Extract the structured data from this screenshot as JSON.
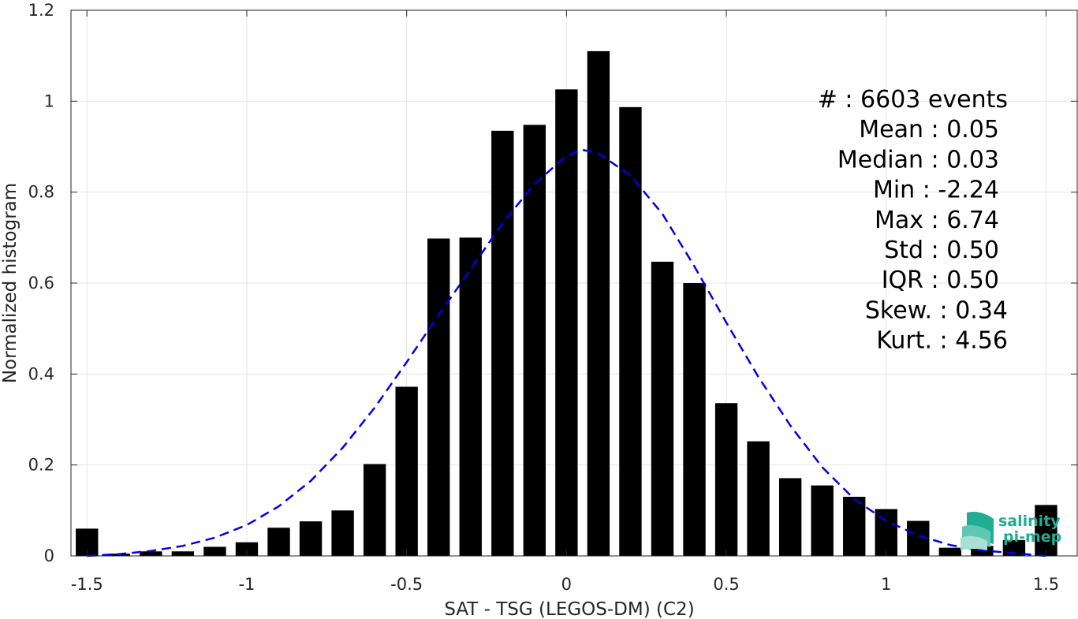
{
  "chart_data": {
    "type": "bar",
    "xlabel": "SAT - TSG (LEGOS-DM) (C2)",
    "ylabel": "Normalized histogram",
    "xlim": [
      -1.55,
      1.6
    ],
    "ylim": [
      0,
      1.2
    ],
    "xticks": [
      -1.5,
      -1,
      -0.5,
      0,
      0.5,
      1,
      1.5
    ],
    "xtick_labels": [
      "-1.5",
      "-1",
      "-0.5",
      "0",
      "0.5",
      "1",
      "1.5"
    ],
    "yticks": [
      0,
      0.2,
      0.4,
      0.6,
      0.8,
      1,
      1.2
    ],
    "ytick_labels": [
      "0",
      "0.2",
      "0.4",
      "0.6",
      "0.8",
      "1",
      "1.2"
    ],
    "grid": true,
    "bar_color": "#000000",
    "bar_width": 0.07,
    "series": [
      {
        "x": [
          -1.5,
          -1.4,
          -1.3,
          -1.2,
          -1.1,
          -1.0,
          -0.9,
          -0.8,
          -0.7,
          -0.6,
          -0.5,
          -0.4,
          -0.3,
          -0.2,
          -0.1,
          0.0,
          0.1,
          0.2,
          0.3,
          0.4,
          0.5,
          0.6,
          0.7,
          0.8,
          0.9,
          1.0,
          1.1,
          1.2,
          1.3,
          1.4,
          1.5
        ],
        "values": [
          0.06,
          0.005,
          0.01,
          0.01,
          0.02,
          0.03,
          0.062,
          0.076,
          0.1,
          0.202,
          0.372,
          0.698,
          0.7,
          0.935,
          0.948,
          1.026,
          1.11,
          0.987,
          0.647,
          0.6,
          0.336,
          0.252,
          0.171,
          0.155,
          0.13,
          0.103,
          0.077,
          0.018,
          0.022,
          0.035,
          0.112
        ]
      }
    ],
    "fit_curve": {
      "style": "dashed",
      "color": "#0000e6",
      "x": [
        -1.5,
        -1.4,
        -1.3,
        -1.2,
        -1.1,
        -1.0,
        -0.9,
        -0.8,
        -0.7,
        -0.6,
        -0.5,
        -0.4,
        -0.3,
        -0.2,
        -0.1,
        0.0,
        0.05,
        0.1,
        0.2,
        0.3,
        0.4,
        0.5,
        0.6,
        0.7,
        0.8,
        0.9,
        1.0,
        1.1,
        1.2,
        1.3,
        1.4,
        1.5
      ],
      "values": [
        0.0,
        0.004,
        0.011,
        0.022,
        0.04,
        0.068,
        0.109,
        0.165,
        0.238,
        0.326,
        0.426,
        0.53,
        0.63,
        0.732,
        0.818,
        0.88,
        0.893,
        0.885,
        0.837,
        0.752,
        0.637,
        0.513,
        0.394,
        0.287,
        0.195,
        0.125,
        0.077,
        0.045,
        0.024,
        0.012,
        0.006,
        0.0
      ]
    },
    "stats": [
      {
        "label": "#  : 6603 events"
      },
      {
        "label": "Mean : 0.05"
      },
      {
        "label": "Median : 0.03"
      },
      {
        "label": "Min : -2.24"
      },
      {
        "label": "Max : 6.74"
      },
      {
        "label": "Std : 0.50"
      },
      {
        "label": "IQR : 0.50"
      },
      {
        "label": "Skew. : 0.34"
      },
      {
        "label": "Kurt. : 4.56"
      }
    ]
  },
  "logo": {
    "line1": "salinity",
    "line2": "pi-mep",
    "color": "#1fae94"
  }
}
